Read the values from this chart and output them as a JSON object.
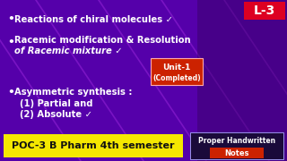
{
  "bg_color": "#5500aa",
  "title_text": "L-3",
  "title_bg": "#dd0022",
  "bullet1": " Reactions of chiral molecules ✓",
  "bullet2a": " Racemic modification & Resolution",
  "bullet2b": "      of Racemic mixture ✓",
  "bullet3": " Asymmetric synthesis :",
  "bullet3a": "      (1) Partial and",
  "bullet3b": "      (2) Absolute ✓",
  "unit_text": "Unit-1",
  "completed_text": "(Completed)",
  "unit_bg": "#cc2200",
  "bottom_text": "POC-3 B Pharm 4th semester",
  "bottom_bg": "#f5e800",
  "bottom_text_color": "#111111",
  "handwritten_text": "Proper Handwritten",
  "notes_text": "Notes",
  "notes_bg": "#cc2200",
  "hw_bg": "#1a0a3a",
  "text_color": "#ffffff",
  "font_size_bullet": 7.2,
  "font_size_bottom": 8.0,
  "font_size_l3": 10,
  "diagonal_color": "#9933cc",
  "line_color": "#cc44ff"
}
